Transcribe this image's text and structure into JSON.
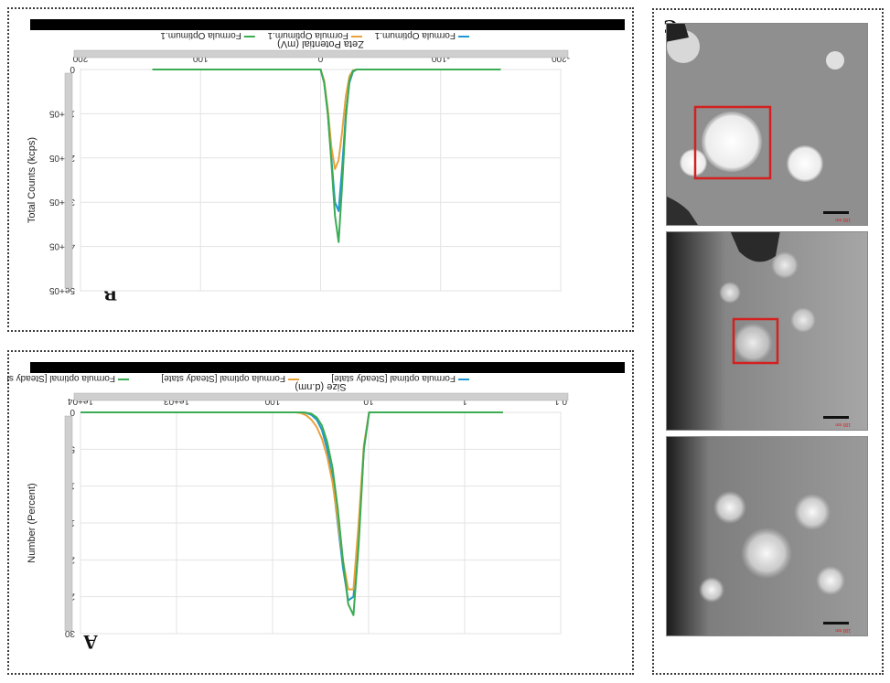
{
  "figure": {
    "panel_labels": {
      "a": "A",
      "b": "B",
      "c": "C"
    },
    "tem_scale_labels": [
      "100 nm",
      "100 nm",
      "100 nm"
    ]
  },
  "colors": {
    "series1": "#1f97d2",
    "series2": "#e8a23a",
    "series3": "#3bab54",
    "title_bar": "#000000",
    "marker_box": "#d42020"
  },
  "chart_data": [
    {
      "type": "line",
      "panel": "A",
      "title": "",
      "xlabel": "Size (d.nm)",
      "ylabel": "Number (Percent)",
      "x_scale": "log",
      "xlim": [
        0.1,
        10000
      ],
      "ylim": [
        0,
        30
      ],
      "x_ticks": [
        0.1,
        1,
        10,
        100,
        1000,
        10000
      ],
      "x_tick_labels": [
        "0.1",
        "1",
        "10",
        "100",
        "1e+03",
        "1e+04"
      ],
      "y_ticks": [
        0,
        5,
        10,
        15,
        20,
        25,
        30
      ],
      "y_tick_labels": [
        "0",
        "5",
        "10",
        "15",
        "20",
        "25",
        "30"
      ],
      "grid": true,
      "legend_position": "top",
      "series": [
        {
          "name": "Formula optimal [Steady state]",
          "color": "#1f97d2",
          "x": [
            0.4,
            9.9,
            11.2,
            12.7,
            14.4,
            16.3,
            18.5,
            21,
            23.8,
            27,
            30.6,
            34.7,
            39.4,
            44.7,
            50.7,
            57.5,
            65.3,
            74,
            10000
          ],
          "y": [
            0,
            0,
            5,
            17,
            25,
            25.5,
            21,
            15,
            9,
            5,
            2.4,
            1,
            0.35,
            0.08,
            0,
            0,
            0,
            0,
            0
          ]
        },
        {
          "name": "Formula optimal [Steady state]",
          "color": "#e8a23a",
          "x": [
            0.4,
            9.9,
            11.2,
            12.7,
            14.4,
            16.3,
            18.5,
            21,
            23.8,
            27,
            30.6,
            34.7,
            39.4,
            44.7,
            50.7,
            57.5,
            65.3,
            74,
            10000
          ],
          "y": [
            0,
            0,
            4.5,
            15,
            24,
            24,
            20,
            14.5,
            9.5,
            6,
            3.6,
            2,
            1,
            0.4,
            0.1,
            0,
            0,
            0,
            0
          ]
        },
        {
          "name": "Formula optimal [Steady state]",
          "color": "#3bab54",
          "x": [
            0.4,
            9.9,
            11.2,
            12.7,
            14.4,
            16.3,
            18.5,
            21,
            23.8,
            27,
            30.6,
            34.7,
            39.4,
            44.7,
            50.7,
            57.5,
            65.3,
            74,
            10000
          ],
          "y": [
            0,
            0,
            5,
            18,
            27.5,
            26,
            20,
            13,
            7.5,
            4,
            1.8,
            0.7,
            0.2,
            0.04,
            0,
            0,
            0,
            0,
            0
          ]
        }
      ]
    },
    {
      "type": "line",
      "panel": "B",
      "title": "",
      "xlabel": "Zeta Potential (mV)",
      "ylabel": "Total Counts (kcps)",
      "xlim": [
        -200,
        200
      ],
      "ylim": [
        0,
        500000
      ],
      "x_ticks": [
        -200,
        -100,
        0,
        100,
        200
      ],
      "x_tick_labels": [
        "-200",
        "-100",
        "0",
        "100",
        "200"
      ],
      "y_ticks": [
        0,
        100000,
        200000,
        300000,
        400000,
        500000
      ],
      "y_tick_labels": [
        "0",
        "1e+05",
        "2e+05",
        "3e+05",
        "4e+05",
        "5e+05"
      ],
      "grid": true,
      "legend_position": "top",
      "series": [
        {
          "name": "Formula Optimum.1",
          "color": "#1f97d2",
          "x": [
            -150,
            -30,
            -27,
            -24,
            -21,
            -18,
            -15,
            -12,
            -9,
            -6,
            -3,
            0,
            140
          ],
          "y": [
            0,
            0,
            5000,
            30000,
            100000,
            220000,
            320000,
            300000,
            200000,
            100000,
            30000,
            0,
            0
          ]
        },
        {
          "name": "Formula Optimum.1",
          "color": "#e8a23a",
          "x": [
            -150,
            -30,
            -27,
            -24,
            -21,
            -18,
            -15,
            -12,
            -9,
            -6,
            -3,
            0,
            140
          ],
          "y": [
            0,
            0,
            2000,
            15000,
            60000,
            140000,
            205000,
            225000,
            175000,
            90000,
            25000,
            0,
            0
          ]
        },
        {
          "name": "Formula Optimum.1",
          "color": "#3bab54",
          "x": [
            -150,
            -30,
            -27,
            -24,
            -21,
            -18,
            -15,
            -12,
            -9,
            -6,
            -3,
            0,
            140
          ],
          "y": [
            0,
            0,
            3000,
            25000,
            110000,
            260000,
            390000,
            330000,
            210000,
            100000,
            30000,
            0,
            0
          ]
        }
      ]
    }
  ]
}
